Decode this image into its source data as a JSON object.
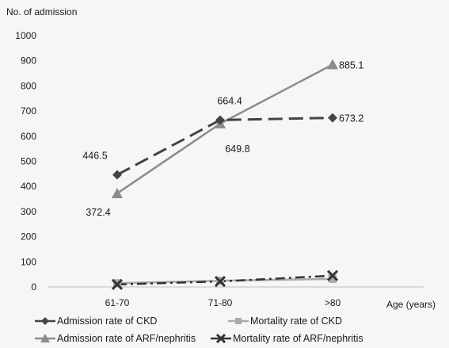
{
  "chart_data": {
    "type": "line",
    "ylabel": "No. of admission",
    "xlabel": "Age (years)",
    "categories": [
      "61-70",
      "71-80",
      ">80"
    ],
    "ylim": [
      0,
      1000
    ],
    "yticks": [
      0,
      100,
      200,
      300,
      400,
      500,
      600,
      700,
      800,
      900,
      1000
    ],
    "grid": false,
    "legend_position": "bottom",
    "series": [
      {
        "name": "Admission rate of CKD",
        "values": [
          446.5,
          664.4,
          673.2
        ],
        "labels": [
          "446.5",
          "664.4",
          "673.2"
        ],
        "color": "#444444",
        "marker": "diamond",
        "line": "long-dash"
      },
      {
        "name": "Mortality rate of CKD",
        "values": [
          15,
          25,
          32
        ],
        "labels": [],
        "color": "#aaaaaa",
        "marker": "square",
        "line": "solid"
      },
      {
        "name": "Admission rate of ARF/nephritis",
        "values": [
          372.4,
          649.8,
          885.1
        ],
        "labels": [
          "372.4",
          "649.8",
          "885.1"
        ],
        "color": "#8c8c8c",
        "marker": "triangle",
        "line": "solid"
      },
      {
        "name": "Mortality rate of ARF/nephritis",
        "values": [
          10,
          22,
          45
        ],
        "labels": [],
        "color": "#333333",
        "marker": "x",
        "line": "dash-dot"
      }
    ]
  }
}
